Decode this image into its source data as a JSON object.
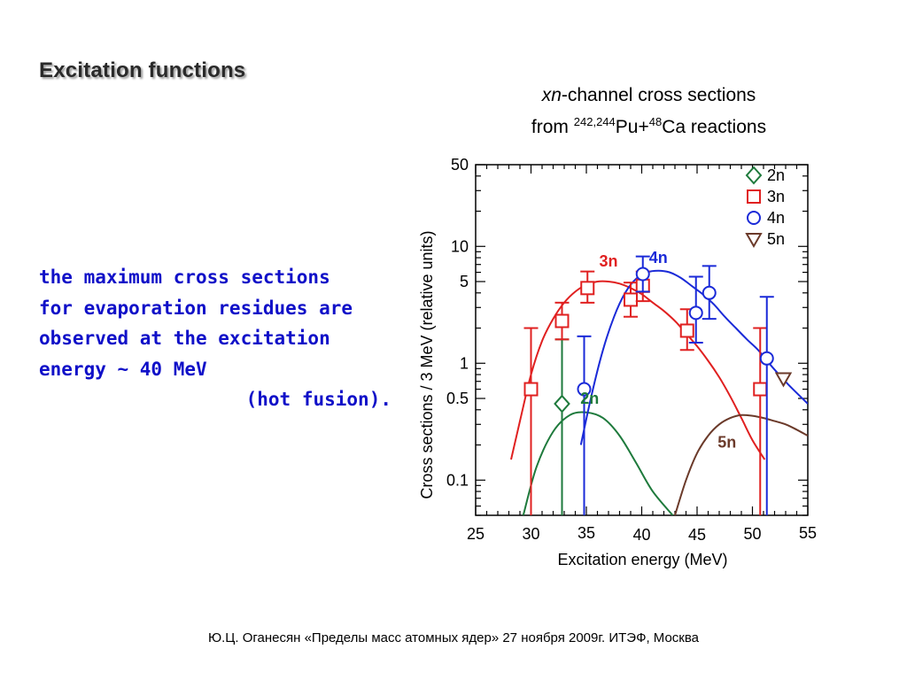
{
  "slide": {
    "title": "Excitation functions",
    "note_lines": [
      "the maximum cross sections",
      "for evaporation residues are",
      "observed at the excitation",
      "energy ~ 40 MeV"
    ],
    "note_last": "(hot fusion).",
    "footer": "Ю.Ц. Оганесян «Пределы масс атомных ядер» 27 ноября 2009г. ИТЭФ, Москва"
  },
  "chart_heading": {
    "italic": "xn",
    "line1_rest": "-channel cross sections",
    "line2_prefix": "from ",
    "sup_pu": "242,244",
    "pu": "Pu+",
    "sup_ca": "48",
    "ca": "Ca reactions"
  },
  "chart_data": {
    "type": "scatter",
    "xlabel": "Excitation energy  (MeV)",
    "ylabel": "Cross sections / 3 MeV  (relative units)",
    "xlim": [
      25,
      55
    ],
    "ylim": [
      0.05,
      50
    ],
    "y_scale": "log",
    "x_ticks": [
      25,
      30,
      35,
      40,
      45,
      50,
      55
    ],
    "y_tick_labels": [
      "50",
      "10",
      "5",
      "1",
      "0.5",
      "0.1"
    ],
    "y_tick_values": [
      50,
      10,
      5,
      1,
      0.5,
      0.1
    ],
    "legend_position": "top-right",
    "legend": [
      {
        "label": "2n",
        "marker": "diamond",
        "color": "#1e7a3c"
      },
      {
        "label": "3n",
        "marker": "square",
        "color": "#e02020"
      },
      {
        "label": "4n",
        "marker": "circle",
        "color": "#1a2ad8"
      },
      {
        "label": "5n",
        "marker": "triangle-down",
        "color": "#6b3a2a"
      }
    ],
    "series": [
      {
        "name": "2n",
        "color": "#1e7a3c",
        "marker": "diamond",
        "points": [
          {
            "x": 32.8,
            "y": 0.45,
            "ylo": 0.05,
            "yhi": 1.6
          }
        ],
        "curve": [
          [
            29.3,
            0.05
          ],
          [
            30.5,
            0.13
          ],
          [
            32,
            0.26
          ],
          [
            33.5,
            0.36
          ],
          [
            35,
            0.38
          ],
          [
            36.5,
            0.34
          ],
          [
            38,
            0.24
          ],
          [
            39.5,
            0.14
          ],
          [
            41,
            0.08
          ],
          [
            42.8,
            0.05
          ]
        ],
        "curve_label": {
          "text": "2n",
          "x": 35.3,
          "y": 0.5
        }
      },
      {
        "name": "3n",
        "color": "#e02020",
        "marker": "square",
        "points": [
          {
            "x": 30,
            "y": 0.6,
            "ylo": 0.05,
            "yhi": 2.0
          },
          {
            "x": 32.8,
            "y": 2.3,
            "ylo": 1.6,
            "yhi": 3.3
          },
          {
            "x": 35.1,
            "y": 4.4,
            "ylo": 3.3,
            "yhi": 6.1
          },
          {
            "x": 39,
            "y": 3.5,
            "ylo": 2.5,
            "yhi": 4.9
          },
          {
            "x": 40.1,
            "y": 4.6,
            "ylo": 3.4,
            "yhi": 6.1
          },
          {
            "x": 44.1,
            "y": 1.9,
            "ylo": 1.3,
            "yhi": 2.9
          },
          {
            "x": 50.7,
            "y": 0.6,
            "ylo": 0.05,
            "yhi": 2.0
          }
        ],
        "curve": [
          [
            28.2,
            0.15
          ],
          [
            29,
            0.32
          ],
          [
            30,
            0.8
          ],
          [
            31,
            1.55
          ],
          [
            32,
            2.4
          ],
          [
            33,
            3.3
          ],
          [
            34,
            4.1
          ],
          [
            35,
            4.7
          ],
          [
            36,
            5.0
          ],
          [
            37,
            5.0
          ],
          [
            38,
            4.8
          ],
          [
            39,
            4.4
          ],
          [
            40,
            3.9
          ],
          [
            41,
            3.3
          ],
          [
            42,
            2.8
          ],
          [
            43,
            2.3
          ],
          [
            44,
            1.8
          ],
          [
            45,
            1.4
          ],
          [
            46,
            1.05
          ],
          [
            47,
            0.76
          ],
          [
            48,
            0.52
          ],
          [
            49,
            0.34
          ],
          [
            50,
            0.22
          ],
          [
            51.1,
            0.15
          ]
        ],
        "curve_label": {
          "text": "3n",
          "x": 37,
          "y": 7.5
        }
      },
      {
        "name": "4n",
        "color": "#1a2ad8",
        "marker": "circle",
        "points": [
          {
            "x": 34.8,
            "y": 0.6,
            "ylo": 0.05,
            "yhi": 1.7
          },
          {
            "x": 40.1,
            "y": 5.8,
            "ylo": 4.1,
            "yhi": 8.2
          },
          {
            "x": 44.9,
            "y": 2.7,
            "ylo": 1.5,
            "yhi": 5.5
          },
          {
            "x": 46.1,
            "y": 4.0,
            "ylo": 2.4,
            "yhi": 6.8
          },
          {
            "x": 51.3,
            "y": 1.1,
            "ylo": 0.05,
            "yhi": 3.7
          }
        ],
        "curve": [
          [
            34.5,
            0.2
          ],
          [
            35.5,
            0.55
          ],
          [
            36.5,
            1.3
          ],
          [
            37.5,
            2.5
          ],
          [
            38.5,
            4.0
          ],
          [
            39.5,
            5.3
          ],
          [
            40.5,
            6.0
          ],
          [
            41.5,
            6.2
          ],
          [
            42.5,
            6.0
          ],
          [
            43.5,
            5.4
          ],
          [
            44.5,
            4.6
          ],
          [
            45.5,
            3.9
          ],
          [
            46.5,
            3.2
          ],
          [
            47.5,
            2.5
          ],
          [
            48.5,
            2.0
          ],
          [
            49.5,
            1.6
          ],
          [
            50.5,
            1.3
          ],
          [
            51.5,
            1.0
          ],
          [
            52.5,
            0.78
          ],
          [
            53.5,
            0.62
          ],
          [
            55,
            0.45
          ]
        ],
        "curve_label": {
          "text": "4n",
          "x": 41.5,
          "y": 8.0
        }
      },
      {
        "name": "5n",
        "color": "#6b3a2a",
        "marker": "triangle-down",
        "points": [
          {
            "x": 52.8,
            "y": 0.74
          }
        ],
        "curve": [
          [
            43,
            0.05
          ],
          [
            44,
            0.1
          ],
          [
            45,
            0.17
          ],
          [
            46,
            0.24
          ],
          [
            47,
            0.3
          ],
          [
            48,
            0.34
          ],
          [
            49,
            0.36
          ],
          [
            50,
            0.355
          ],
          [
            51,
            0.34
          ],
          [
            52,
            0.32
          ],
          [
            53,
            0.3
          ],
          [
            54,
            0.27
          ],
          [
            55,
            0.24
          ]
        ],
        "curve_label": {
          "text": "5n",
          "x": 47.7,
          "y": 0.21
        }
      }
    ]
  }
}
